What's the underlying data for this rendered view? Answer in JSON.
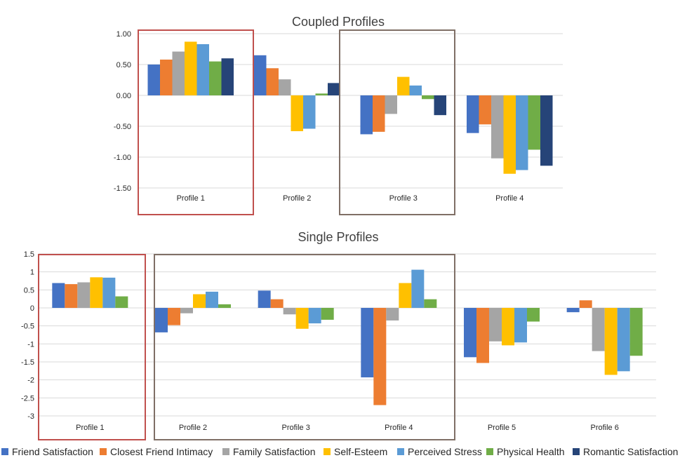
{
  "series_colors": {
    "Friend Satisfaction": "#4472C4",
    "Closest Friend Intimacy": "#ED7D31",
    "Family Satisfaction": "#A5A5A5",
    "Self-Esteem": "#FFC000",
    "Perceived Stress": "#5B9BD5",
    "Physical Health": "#70AD47",
    "Romantic Satisfaction": "#264478"
  },
  "highlight_colors": {
    "red": "#C0504D",
    "brown": "#7F6F66"
  },
  "legend": [
    {
      "label": "Friend Satisfaction",
      "color": "#4472C4"
    },
    {
      "label": "Closest Friend Intimacy",
      "color": "#ED7D31"
    },
    {
      "label": "Family Satisfaction",
      "color": "#A5A5A5"
    },
    {
      "label": "Self-Esteem",
      "color": "#FFC000"
    },
    {
      "label": "Perceived Stress",
      "color": "#5B9BD5"
    },
    {
      "label": "Physical Health",
      "color": "#70AD47"
    },
    {
      "label": "Romantic Satisfaction",
      "color": "#264478"
    }
  ],
  "chart_data": [
    {
      "type": "bar",
      "title": "Coupled Profiles",
      "categories": [
        "Profile 1",
        "Profile 2",
        "Profile 3",
        "Profile 4"
      ],
      "ylim": [
        -1.5,
        1.0
      ],
      "yticks": [
        "1.00",
        "0.50",
        "0.00",
        "-0.50",
        "-1.00",
        "-1.50"
      ],
      "ytick_values": [
        1.0,
        0.5,
        0.0,
        -0.5,
        -1.0,
        -1.5
      ],
      "grid": true,
      "series": [
        {
          "name": "Friend Satisfaction",
          "values": [
            0.5,
            0.65,
            -0.63,
            -0.61
          ]
        },
        {
          "name": "Closest Friend Intimacy",
          "values": [
            0.58,
            0.44,
            -0.59,
            -0.47
          ]
        },
        {
          "name": "Family Satisfaction",
          "values": [
            0.71,
            0.26,
            -0.3,
            -1.02
          ]
        },
        {
          "name": "Self-Esteem",
          "values": [
            0.87,
            -0.58,
            0.3,
            -1.27
          ]
        },
        {
          "name": "Perceived Stress",
          "values": [
            0.83,
            -0.54,
            0.16,
            -1.21
          ]
        },
        {
          "name": "Physical Health",
          "values": [
            0.55,
            0.03,
            -0.06,
            -0.88
          ]
        },
        {
          "name": "Romantic Satisfaction",
          "values": [
            0.6,
            0.2,
            -0.32,
            -1.14
          ]
        }
      ],
      "highlight_groups": [
        {
          "categories": [
            0
          ],
          "color": "red"
        },
        {
          "categories": [
            2
          ],
          "color": "brown"
        }
      ]
    },
    {
      "type": "bar",
      "title": "Single Profiles",
      "categories": [
        "Profile 1",
        "Profile 2",
        "Profile 3",
        "Profile 4",
        "Profile 5",
        "Profile 6"
      ],
      "ylim": [
        -3,
        1.5
      ],
      "yticks": [
        "1.5",
        "1",
        "0.5",
        "0",
        "-0.5",
        "-1",
        "-1.5",
        "-2",
        "-2.5",
        "-3"
      ],
      "ytick_values": [
        1.5,
        1,
        0.5,
        0,
        -0.5,
        -1,
        -1.5,
        -2,
        -2.5,
        -3
      ],
      "grid": true,
      "series": [
        {
          "name": "Friend Satisfaction",
          "values": [
            0.69,
            -0.68,
            0.48,
            -1.93,
            -1.37,
            -0.12
          ]
        },
        {
          "name": "Closest Friend Intimacy",
          "values": [
            0.66,
            -0.48,
            0.24,
            -2.7,
            -1.53,
            0.21
          ]
        },
        {
          "name": "Family Satisfaction",
          "values": [
            0.71,
            -0.15,
            -0.18,
            -0.35,
            -0.93,
            -1.2
          ]
        },
        {
          "name": "Self-Esteem",
          "values": [
            0.85,
            0.38,
            -0.58,
            0.69,
            -1.04,
            -1.86
          ]
        },
        {
          "name": "Perceived Stress",
          "values": [
            0.84,
            0.45,
            -0.43,
            1.06,
            -0.96,
            -1.76
          ]
        },
        {
          "name": "Physical Health",
          "values": [
            0.32,
            0.1,
            -0.33,
            0.24,
            -0.38,
            -1.33
          ]
        }
      ],
      "highlight_groups": [
        {
          "categories": [
            0
          ],
          "color": "red"
        },
        {
          "categories": [
            1,
            2,
            3
          ],
          "color": "brown"
        }
      ]
    }
  ]
}
